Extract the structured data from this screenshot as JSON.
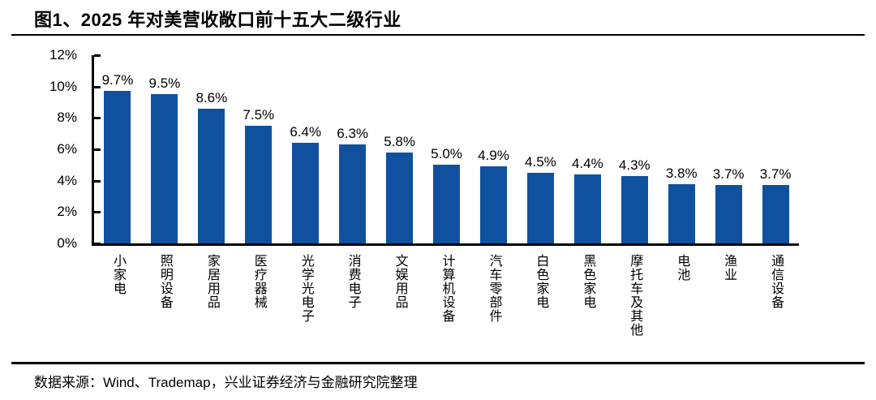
{
  "colors": {
    "bar": "#10519F",
    "axis": "#000000",
    "text": "#000000",
    "background": "#FFFFFF"
  },
  "footer": {
    "source": "数据来源：Wind、Trademap，兴业证券经济与金融研究院整理"
  },
  "chart_data": {
    "type": "bar",
    "title": "图1、2025 年对美营收敞口前十五大二级行业",
    "categories": [
      "小家电",
      "照明设备",
      "家居用品",
      "医疗器械",
      "光学光电子",
      "消费电子",
      "文娱用品",
      "计算机设备",
      "汽车零部件",
      "白色家电",
      "黑色家电",
      "摩托车及其他",
      "电池",
      "渔业",
      "通信设备"
    ],
    "values": [
      9.7,
      9.5,
      8.6,
      7.5,
      6.4,
      6.3,
      5.8,
      5.0,
      4.9,
      4.5,
      4.4,
      4.3,
      3.8,
      3.7,
      3.7
    ],
    "value_labels": [
      "9.7%",
      "9.5%",
      "8.6%",
      "7.5%",
      "6.4%",
      "6.3%",
      "5.8%",
      "5.0%",
      "4.9%",
      "4.5%",
      "4.4%",
      "4.3%",
      "3.8%",
      "3.7%",
      "3.7%"
    ],
    "y_ticks": [
      "12%",
      "10%",
      "8%",
      "6%",
      "4%",
      "2%",
      "0%"
    ],
    "ylim": [
      0,
      12
    ],
    "xlabel": "",
    "ylabel": "",
    "grid": false,
    "legend": "none",
    "bar_color": "#10519F"
  }
}
